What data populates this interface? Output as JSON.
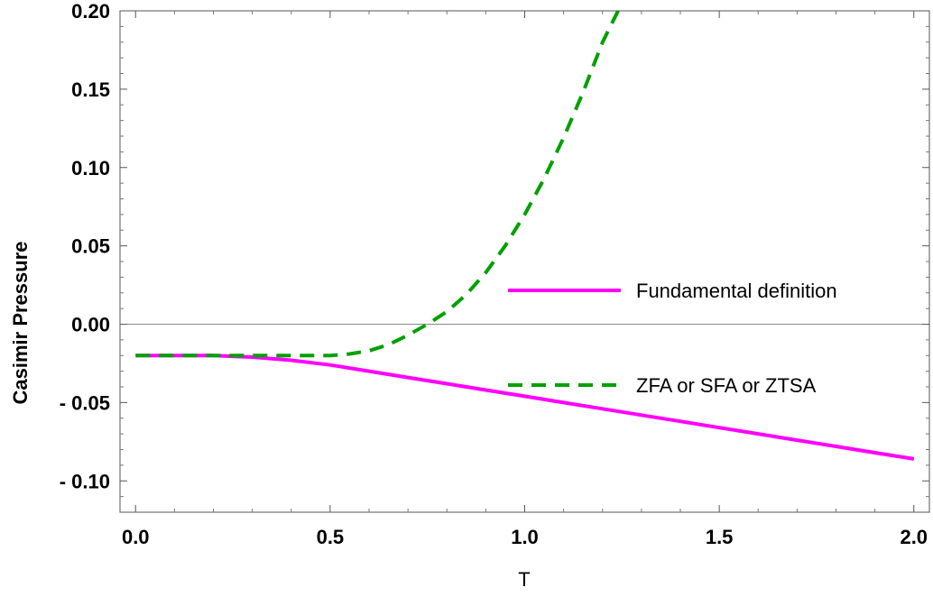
{
  "chart_data": {
    "type": "line",
    "title": "",
    "xlabel": "T",
    "ylabel": "Casimir Pressure",
    "xlim": [
      -0.04,
      2.04
    ],
    "ylim": [
      -0.12,
      0.2
    ],
    "x_ticks": [
      0.0,
      0.5,
      1.0,
      1.5,
      2.0
    ],
    "x_tick_labels": [
      "0.0",
      "0.5",
      "1.0",
      "1.5",
      "2.0"
    ],
    "y_ticks": [
      -0.1,
      -0.05,
      0.0,
      0.05,
      0.1,
      0.15,
      0.2
    ],
    "y_tick_labels": [
      "- 0.10",
      "- 0.05",
      "0.00",
      "0.05",
      "0.10",
      "0.15",
      "0.20"
    ],
    "grid": false,
    "zero_line": true,
    "legend_placement": "center-right",
    "series": [
      {
        "name": "Fundamental definition",
        "color": "#ff00ff",
        "dash": "solid",
        "x": [
          0.0,
          0.1,
          0.2,
          0.3,
          0.4,
          0.5,
          0.6,
          0.7,
          0.8,
          0.9,
          1.0,
          1.1,
          1.2,
          1.3,
          1.4,
          1.5,
          1.6,
          1.7,
          1.8,
          1.9,
          2.0
        ],
        "y": [
          -0.02,
          -0.02,
          -0.02,
          -0.021,
          -0.023,
          -0.026,
          -0.03,
          -0.034,
          -0.038,
          -0.042,
          -0.046,
          -0.05,
          -0.054,
          -0.058,
          -0.062,
          -0.066,
          -0.07,
          -0.074,
          -0.078,
          -0.082,
          -0.086
        ]
      },
      {
        "name": "ZFA or SFA or ZTSA",
        "color": "#00a000",
        "dash": "dashed",
        "x": [
          0.0,
          0.1,
          0.2,
          0.3,
          0.4,
          0.5,
          0.55,
          0.6,
          0.65,
          0.7,
          0.75,
          0.8,
          0.85,
          0.9,
          0.95,
          1.0,
          1.05,
          1.1,
          1.15,
          1.2,
          1.24
        ],
        "y": [
          -0.02,
          -0.02,
          -0.02,
          -0.02,
          -0.02,
          -0.02,
          -0.019,
          -0.017,
          -0.013,
          -0.007,
          0.0,
          0.008,
          0.019,
          0.033,
          0.05,
          0.07,
          0.093,
          0.119,
          0.148,
          0.18,
          0.2
        ]
      }
    ]
  }
}
